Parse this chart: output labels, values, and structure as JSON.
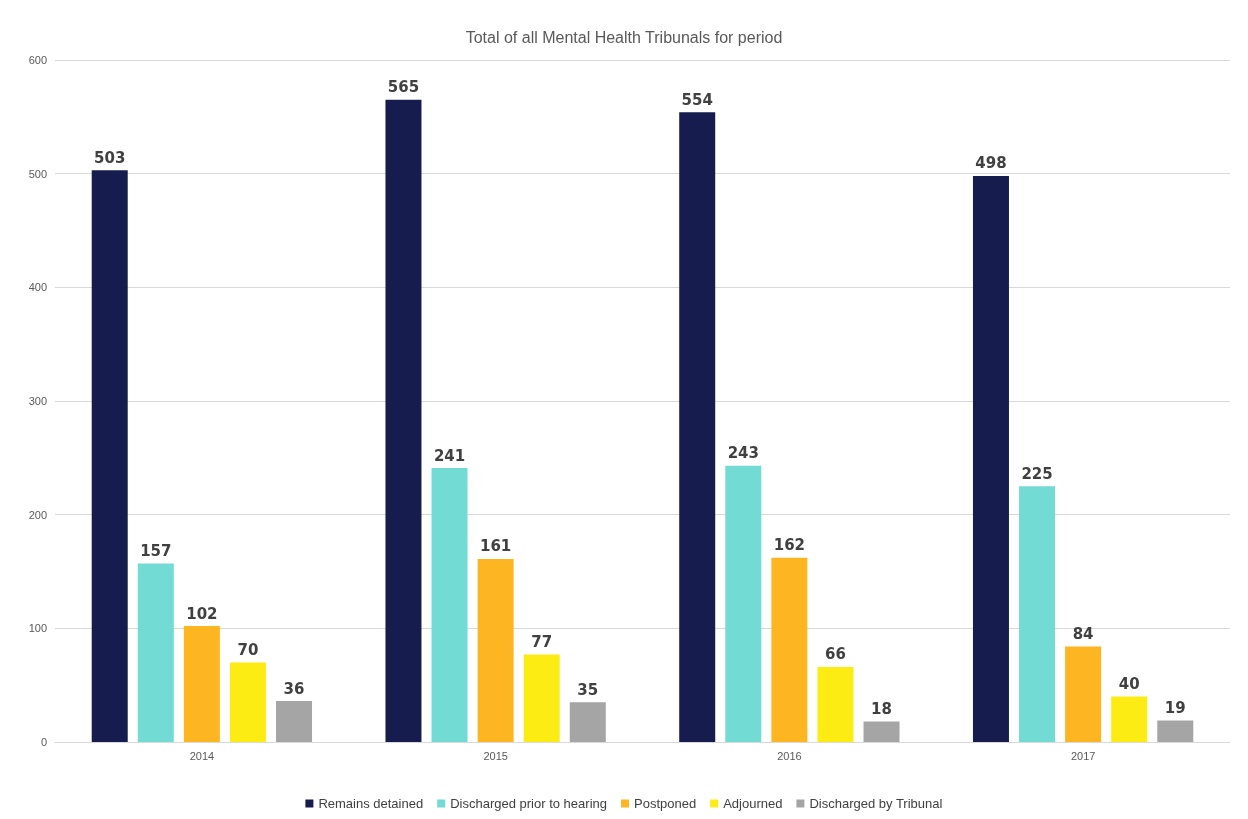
{
  "chart_data": {
    "type": "bar",
    "title": "Total of all Mental Health Tribunals for period",
    "categories": [
      "2014",
      "2015",
      "2016",
      "2017"
    ],
    "series": [
      {
        "name": "Remains detained",
        "color": "#161c4e",
        "values": [
          503,
          565,
          554,
          498
        ]
      },
      {
        "name": "Discharged prior to hearing",
        "color": "#72dbd4",
        "values": [
          157,
          241,
          243,
          225
        ]
      },
      {
        "name": "Postponed",
        "color": "#fdb522",
        "values": [
          102,
          161,
          162,
          84
        ]
      },
      {
        "name": "Adjourned",
        "color": "#fdec14",
        "values": [
          70,
          77,
          66,
          40
        ]
      },
      {
        "name": "Discharged by Tribunal",
        "color": "#a5a5a5",
        "values": [
          36,
          35,
          18,
          19
        ]
      }
    ],
    "ylim": [
      0,
      600
    ],
    "yticks": [
      0,
      100,
      200,
      300,
      400,
      500,
      600
    ],
    "grid": "y",
    "legend": "bottom",
    "data_labels": true
  }
}
